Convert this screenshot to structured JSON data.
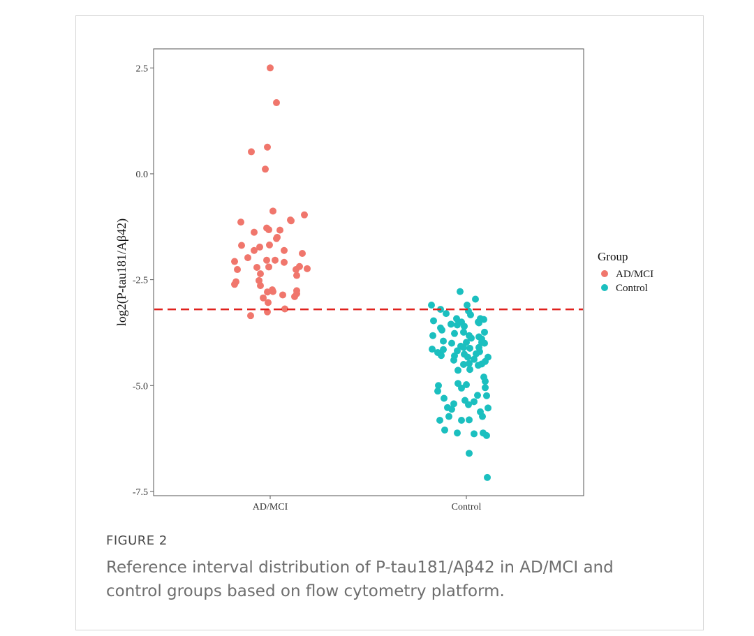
{
  "figure": {
    "label": "FIGURE 2",
    "caption": "Reference interval distribution of P-tau181/Aβ42 in AD/MCI and control groups based on flow cytometry platform."
  },
  "chart_data": {
    "type": "scatter",
    "ylabel": "log2(P-tau181/Aβ42)",
    "xlabel": "",
    "categories": [
      "AD/MCI",
      "Control"
    ],
    "y_ticks": [
      "2.5",
      "0.0",
      "-2.5",
      "-5.0",
      "-7.5"
    ],
    "ylim": [
      -7.6,
      2.95
    ],
    "grid": false,
    "legend": {
      "title": "Group",
      "position": "right"
    },
    "reference_line": {
      "y": -3.2,
      "style": "dashed",
      "color": "#e0211d"
    },
    "series": [
      {
        "name": "AD/MCI",
        "color": "#f0766c",
        "points": [
          [
            0.0,
            2.5
          ],
          [
            0.09,
            1.68
          ],
          [
            -0.27,
            0.52
          ],
          [
            -0.04,
            0.63
          ],
          [
            -0.07,
            0.11
          ],
          [
            0.04,
            -0.88
          ],
          [
            0.49,
            -0.97
          ],
          [
            -0.42,
            -1.14
          ],
          [
            0.29,
            -1.09
          ],
          [
            0.3,
            -1.11
          ],
          [
            -0.05,
            -1.28
          ],
          [
            -0.02,
            -1.32
          ],
          [
            0.14,
            -1.33
          ],
          [
            -0.23,
            -1.38
          ],
          [
            0.1,
            -1.5
          ],
          [
            0.09,
            -1.53
          ],
          [
            -0.41,
            -1.69
          ],
          [
            -0.01,
            -1.68
          ],
          [
            -0.15,
            -1.73
          ],
          [
            -0.23,
            -1.81
          ],
          [
            0.2,
            -1.81
          ],
          [
            0.46,
            -1.88
          ],
          [
            -0.32,
            -1.98
          ],
          [
            0.07,
            -2.04
          ],
          [
            -0.05,
            -2.04
          ],
          [
            0.2,
            -2.09
          ],
          [
            -0.51,
            -2.07
          ],
          [
            -0.47,
            -2.26
          ],
          [
            -0.19,
            -2.21
          ],
          [
            -0.02,
            -2.2
          ],
          [
            0.42,
            -2.19
          ],
          [
            0.37,
            -2.26
          ],
          [
            0.53,
            -2.24
          ],
          [
            -0.14,
            -2.36
          ],
          [
            0.38,
            -2.4
          ],
          [
            -0.49,
            -2.55
          ],
          [
            -0.16,
            -2.52
          ],
          [
            -0.51,
            -2.61
          ],
          [
            -0.14,
            -2.64
          ],
          [
            0.03,
            -2.74
          ],
          [
            -0.04,
            -2.79
          ],
          [
            0.04,
            -2.78
          ],
          [
            0.38,
            -2.76
          ],
          [
            0.18,
            -2.86
          ],
          [
            0.38,
            -2.83
          ],
          [
            -0.1,
            -2.93
          ],
          [
            0.35,
            -2.9
          ],
          [
            -0.03,
            -3.04
          ],
          [
            0.21,
            -3.19
          ],
          [
            -0.04,
            -3.26
          ],
          [
            -0.28,
            -3.35
          ]
        ]
      },
      {
        "name": "Control",
        "color": "#1bbfbf",
        "points": [
          [
            -0.09,
            -2.78
          ],
          [
            0.13,
            -2.96
          ],
          [
            -0.5,
            -3.1
          ],
          [
            0.01,
            -3.1
          ],
          [
            0.03,
            -3.24
          ],
          [
            -0.37,
            -3.2
          ],
          [
            -0.29,
            -3.3
          ],
          [
            0.06,
            -3.33
          ],
          [
            -0.14,
            -3.42
          ],
          [
            0.2,
            -3.42
          ],
          [
            0.17,
            -3.5
          ],
          [
            -0.47,
            -3.47
          ],
          [
            0.18,
            -3.52
          ],
          [
            -0.07,
            -3.5
          ],
          [
            -0.22,
            -3.55
          ],
          [
            0.25,
            -3.44
          ],
          [
            -0.13,
            -3.57
          ],
          [
            -0.03,
            -3.6
          ],
          [
            -0.37,
            -3.64
          ],
          [
            -0.35,
            -3.69
          ],
          [
            -0.04,
            -3.74
          ],
          [
            -0.17,
            -3.77
          ],
          [
            0.26,
            -3.74
          ],
          [
            0.04,
            -3.82
          ],
          [
            -0.48,
            -3.82
          ],
          [
            0.18,
            -3.85
          ],
          [
            0.22,
            -3.9
          ],
          [
            0.07,
            -3.88
          ],
          [
            -0.33,
            -3.95
          ],
          [
            -0.21,
            -4.0
          ],
          [
            0.0,
            -3.98
          ],
          [
            0.26,
            -4.0
          ],
          [
            0.22,
            -3.98
          ],
          [
            -0.08,
            -4.07
          ],
          [
            -0.04,
            -4.1
          ],
          [
            0.18,
            -4.1
          ],
          [
            0.05,
            -4.12
          ],
          [
            -0.49,
            -4.14
          ],
          [
            -0.33,
            -4.15
          ],
          [
            -0.41,
            -4.22
          ],
          [
            -0.13,
            -4.18
          ],
          [
            0.19,
            -4.2
          ],
          [
            0.14,
            -4.25
          ],
          [
            -0.03,
            -4.26
          ],
          [
            -0.36,
            -4.29
          ],
          [
            -0.17,
            -4.3
          ],
          [
            0.02,
            -4.33
          ],
          [
            0.31,
            -4.33
          ],
          [
            -0.18,
            -4.4
          ],
          [
            0.11,
            -4.38
          ],
          [
            0.27,
            -4.43
          ],
          [
            0.04,
            -4.48
          ],
          [
            0.22,
            -4.49
          ],
          [
            -0.04,
            -4.5
          ],
          [
            0.17,
            -4.52
          ],
          [
            0.05,
            -4.62
          ],
          [
            -0.12,
            -4.64
          ],
          [
            0.25,
            -4.8
          ],
          [
            0.27,
            -4.9
          ],
          [
            -0.12,
            -4.95
          ],
          [
            0.0,
            -4.98
          ],
          [
            -0.4,
            -5.0
          ],
          [
            -0.07,
            -5.06
          ],
          [
            0.27,
            -5.05
          ],
          [
            -0.41,
            -5.13
          ],
          [
            0.16,
            -5.23
          ],
          [
            0.29,
            -5.24
          ],
          [
            -0.32,
            -5.3
          ],
          [
            -0.02,
            -5.35
          ],
          [
            0.11,
            -5.38
          ],
          [
            -0.18,
            -5.43
          ],
          [
            0.03,
            -5.45
          ],
          [
            -0.27,
            -5.52
          ],
          [
            0.31,
            -5.53
          ],
          [
            -0.21,
            -5.56
          ],
          [
            0.2,
            -5.62
          ],
          [
            -0.25,
            -5.73
          ],
          [
            0.23,
            -5.73
          ],
          [
            -0.38,
            -5.82
          ],
          [
            -0.07,
            -5.82
          ],
          [
            0.04,
            -5.81
          ],
          [
            -0.31,
            -6.05
          ],
          [
            -0.13,
            -6.12
          ],
          [
            0.11,
            -6.14
          ],
          [
            0.24,
            -6.12
          ],
          [
            0.29,
            -6.18
          ],
          [
            0.04,
            -6.6
          ],
          [
            0.3,
            -7.17
          ]
        ]
      }
    ]
  }
}
